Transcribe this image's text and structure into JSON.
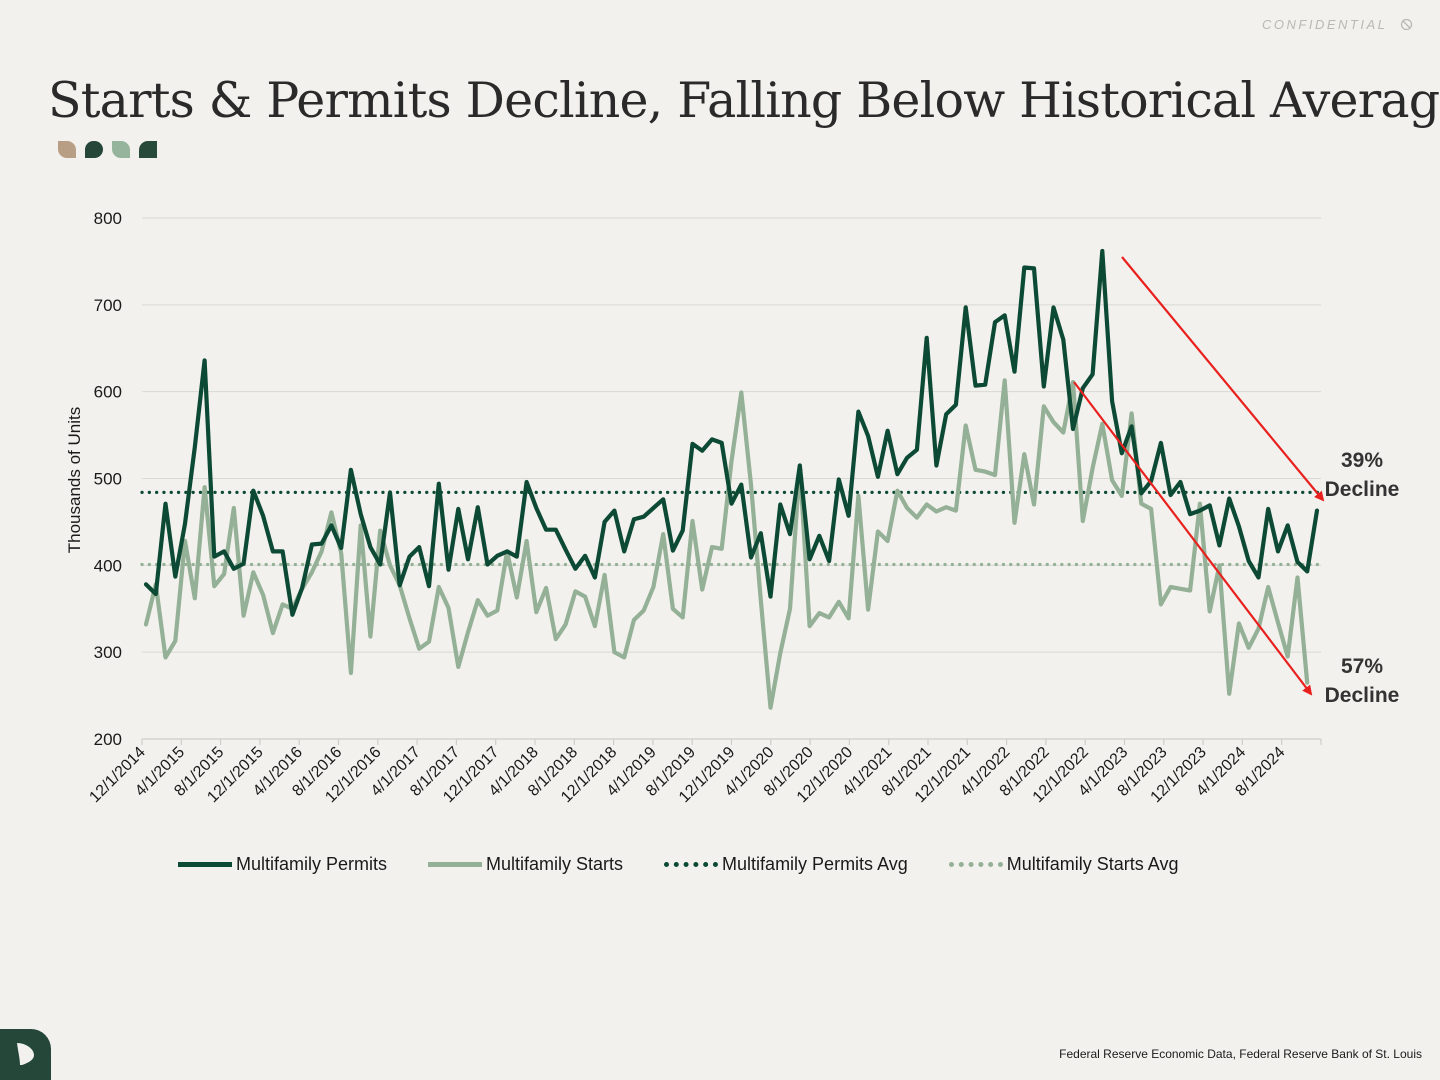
{
  "header": {
    "confidential": "CONFIDENTIAL",
    "title": "Starts & Permits Decline, Falling Below Historical Average"
  },
  "footer": {
    "source": "Federal Reserve Economic Data, Federal Reserve Bank of St. Louis"
  },
  "colors": {
    "permits": "#0d4a35",
    "starts": "#94b096",
    "arrow": "#e8201e",
    "background": "#f2f1ed"
  },
  "chart_data": {
    "type": "line",
    "ylabel": "Thousands of Units",
    "ylim": [
      200,
      800
    ],
    "yticks": [
      200,
      300,
      400,
      500,
      600,
      700,
      800
    ],
    "xtick_labels": [
      "12/1/2014",
      "4/1/2015",
      "8/1/2015",
      "12/1/2015",
      "4/1/2016",
      "8/1/2016",
      "12/1/2016",
      "4/1/2017",
      "8/1/2017",
      "12/1/2017",
      "4/1/2018",
      "8/1/2018",
      "12/1/2018",
      "4/1/2019",
      "8/1/2019",
      "12/1/2019",
      "4/1/2020",
      "8/1/2020",
      "12/1/2020",
      "4/1/2021",
      "8/1/2021",
      "12/1/2021",
      "4/1/2022",
      "8/1/2022",
      "12/1/2022",
      "4/1/2023",
      "8/1/2023",
      "12/1/2023",
      "4/1/2024",
      "8/1/2024"
    ],
    "x_start": "12/1/2014",
    "x_interval": "monthly",
    "series": [
      {
        "name": "Multifamily Permits",
        "style": "solid",
        "values": [
          378,
          367,
          471,
          387,
          448,
          536,
          636,
          410,
          416,
          396,
          402,
          486,
          457,
          416,
          416,
          343,
          374,
          424,
          425,
          446,
          420,
          510,
          459,
          421,
          401,
          484,
          377,
          410,
          421,
          376,
          494,
          395,
          465,
          407,
          467,
          401,
          411,
          416,
          410,
          496,
          466,
          441,
          441,
          418,
          396,
          411,
          386,
          450,
          463,
          416,
          453,
          456,
          466,
          476,
          417,
          440,
          540,
          532,
          545,
          541,
          471,
          493,
          409,
          437,
          364,
          470,
          436,
          515,
          407,
          434,
          405,
          499,
          457,
          577,
          549,
          502,
          555,
          505,
          524,
          533,
          662,
          515,
          574,
          585,
          697,
          607,
          608,
          680,
          688,
          623,
          743,
          742,
          606,
          697,
          660,
          557,
          604,
          620,
          762,
          589,
          529,
          560,
          483,
          497,
          541,
          481,
          496,
          459,
          463,
          469,
          423,
          477,
          445,
          405,
          386,
          465,
          416,
          446,
          404,
          393,
          463
        ]
      },
      {
        "name": "Multifamily Starts",
        "style": "solid",
        "values": [
          332,
          378,
          294,
          313,
          428,
          362,
          490,
          376,
          390,
          466,
          342,
          392,
          366,
          322,
          355,
          350,
          373,
          392,
          416,
          461,
          414,
          276,
          446,
          318,
          440,
          400,
          377,
          339,
          304,
          312,
          375,
          351,
          283,
          323,
          360,
          342,
          348,
          416,
          363,
          428,
          346,
          374,
          315,
          332,
          370,
          364,
          330,
          389,
          300,
          294,
          337,
          348,
          375,
          436,
          350,
          340,
          451,
          372,
          421,
          419,
          520,
          599,
          493,
          360,
          236,
          299,
          350,
          515,
          330,
          345,
          340,
          358,
          339,
          480,
          349,
          439,
          428,
          486,
          466,
          455,
          470,
          462,
          467,
          463,
          561,
          510,
          508,
          504,
          613,
          449,
          528,
          470,
          583,
          565,
          553,
          611,
          451,
          512,
          563,
          498,
          480,
          575,
          471,
          465,
          355,
          375,
          373,
          371,
          471,
          347,
          400,
          252,
          333,
          305,
          327,
          375,
          334,
          295,
          386,
          265
        ]
      }
    ],
    "reference_lines": [
      {
        "name": "Multifamily Permits Avg",
        "value": 484,
        "style": "dotted"
      },
      {
        "name": "Multifamily Starts Avg",
        "value": 401,
        "style": "dotted"
      }
    ],
    "annotations": [
      {
        "text_line1": "39%",
        "text_line2": "Decline",
        "series": "Multifamily Permits"
      },
      {
        "text_line1": "57%",
        "text_line2": "Decline",
        "series": "Multifamily Starts"
      }
    ],
    "legend": [
      "Multifamily Permits",
      "Multifamily Starts",
      "Multifamily Permits Avg",
      "Multifamily Starts Avg"
    ],
    "legend_position": "bottom",
    "grid": true
  }
}
